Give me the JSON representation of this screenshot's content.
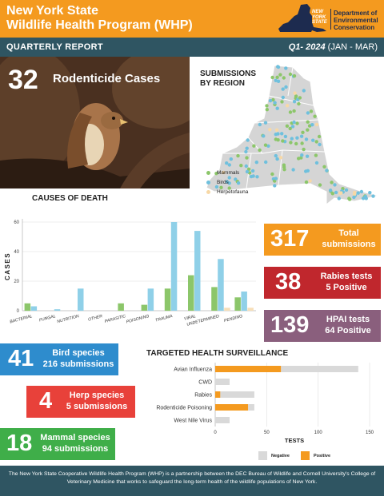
{
  "header": {
    "title_line1": "New York State",
    "title_line2": "Wildlife Health Program (WHP)",
    "state_logo": "NEW YORK STATE",
    "dept_line1": "Department of",
    "dept_line2": "Environmental",
    "dept_line3": "Conservation"
  },
  "subheader": {
    "report_label": "QUARTERLY REPORT",
    "quarter_bold": "Q1- 2024",
    "quarter_range": "(JAN - MAR)"
  },
  "rodenticide": {
    "count": "32",
    "label": "Rodenticide Cases"
  },
  "map": {
    "title_line1": "SUBMISSIONS",
    "title_line2": "BY REGION",
    "legend": [
      {
        "label": "Mammals",
        "color": "#8cc66a"
      },
      {
        "label": "Birds",
        "color": "#6fc0dd"
      },
      {
        "label": "Herpetofauna",
        "color": "#f7d8a6"
      }
    ]
  },
  "stats": {
    "total": {
      "num": "317",
      "label_line1": "Total",
      "label_line2": "submissions",
      "color": "#f49a1f"
    },
    "rabies": {
      "num": "38",
      "label_line1": "Rabies tests",
      "label_line2": "5 Positive",
      "color": "#c0272d"
    },
    "hpai": {
      "num": "139",
      "label_line1": "HPAI tests",
      "label_line2": "64 Positive",
      "color": "#8a5f7d"
    },
    "bird": {
      "num": "41",
      "label_line1": "Bird species",
      "label_line2": "216 submissions",
      "color": "#2e8ccd"
    },
    "herp": {
      "num": "4",
      "label_line1": "Herp species",
      "label_line2": "5 submissions",
      "color": "#e8413a"
    },
    "mammal": {
      "num": "18",
      "label_line1": "Mammal species",
      "label_line2": "94 submissions",
      "color": "#3fae49"
    }
  },
  "chart_data": [
    {
      "type": "bar",
      "title": "CAUSES OF DEATH",
      "ylabel": "CASES",
      "xlabel": "",
      "ylim": [
        0,
        60
      ],
      "yticks": [
        0,
        20,
        40,
        60
      ],
      "grid": true,
      "legend": "none",
      "categories": [
        "BACTERIAL",
        "FUNGAL",
        "NUTRITION",
        "OTHER",
        "PARASITIC",
        "POISONING",
        "TRAUMA",
        "VIRAL",
        "UNDETERMINED",
        "PENDING"
      ],
      "series": [
        {
          "name": "",
          "color": "#8cc66a",
          "values": [
            5,
            0,
            0,
            0,
            5,
            4,
            15,
            24,
            16,
            9
          ]
        },
        {
          "name": "",
          "color": "#8fd0e8",
          "values": [
            3,
            1,
            15,
            0,
            0,
            15,
            60,
            54,
            35,
            13
          ]
        },
        {
          "name": "",
          "color": "#f7dfb8",
          "values": [
            0,
            0,
            0,
            0,
            0,
            0,
            0,
            0,
            2,
            2
          ]
        }
      ]
    },
    {
      "type": "bar",
      "orientation": "horizontal",
      "stacked": true,
      "title": "TARGETED HEALTH SURVEILLANCE",
      "xlabel": "TESTS",
      "ylabel": "",
      "xlim": [
        0,
        150
      ],
      "xticks": [
        0,
        50,
        100,
        150
      ],
      "grid": true,
      "legend": "bottom-right",
      "categories": [
        "Avian Influenza",
        "CWD",
        "Rabies",
        "Rodenticide Poisoning",
        "West Nile Virus"
      ],
      "series": [
        {
          "name": "Positive",
          "color": "#f49a1f",
          "values": [
            64,
            0,
            5,
            32,
            0
          ]
        },
        {
          "name": "Negative",
          "color": "#d9d9d9",
          "values": [
            75,
            14,
            33,
            6,
            14
          ]
        }
      ]
    }
  ],
  "footer": {
    "text": "The New York State Cooperative Wildlife Health Program (WHP) is a partnership between the DEC Bureau of Wildlife and Cornell University's College of Veterinary Medicine that works to safeguard the long-term health of the wildlife populations of New York."
  }
}
